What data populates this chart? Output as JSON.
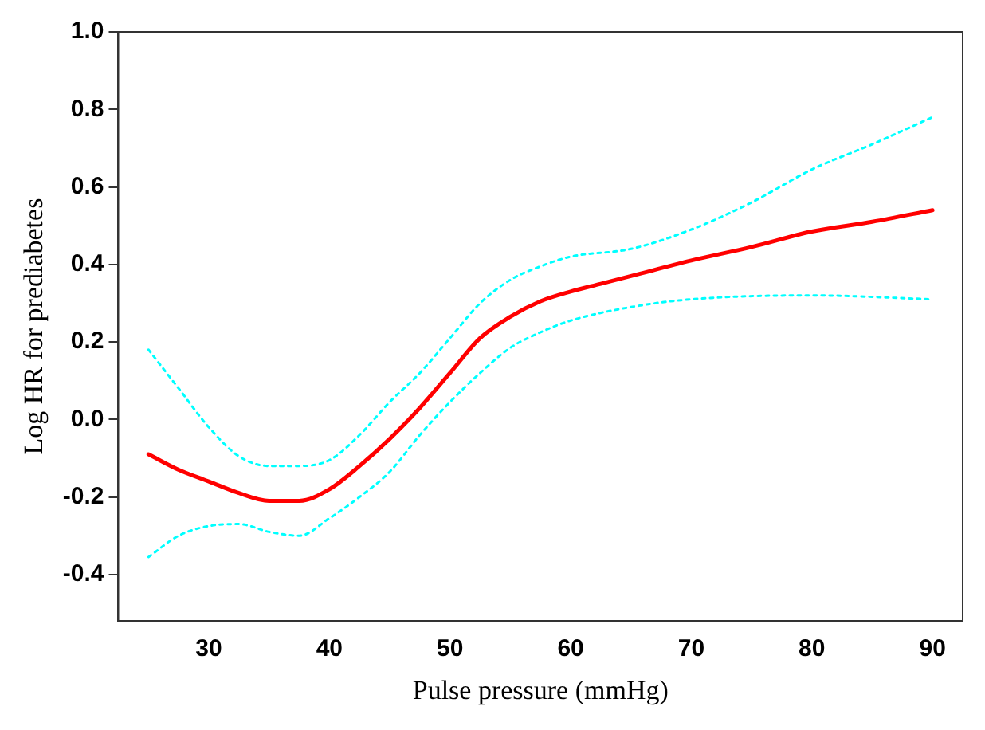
{
  "chart_data": {
    "type": "line",
    "xlabel": "Pulse pressure (mmHg)",
    "ylabel": "Log HR for prediabetes",
    "xlim": [
      22.5,
      92.5
    ],
    "xticks": [
      30,
      40,
      50,
      60,
      70,
      80,
      90
    ],
    "ylim": [
      -0.52,
      1.0
    ],
    "yticks": [
      -0.4,
      -0.2,
      {
        "value": 0,
        "label": "0.0"
      },
      0.2,
      0.4,
      0.6,
      0.8,
      {
        "value": 1,
        "label": "1.0"
      }
    ],
    "grid": false,
    "legend": false,
    "marker": "none",
    "series": [
      {
        "color": "#00ffff",
        "line_style": "dotted",
        "x": [
          25,
          27.5,
          30,
          32.5,
          35,
          37.5,
          40,
          42.5,
          45,
          47.5,
          50,
          52.5,
          55,
          57.5,
          60,
          65,
          70,
          75,
          80,
          85,
          90
        ],
        "values": [
          0.18,
          0.08,
          -0.02,
          -0.095,
          -0.12,
          -0.12,
          -0.105,
          -0.04,
          0.045,
          0.12,
          0.21,
          0.3,
          0.36,
          0.395,
          0.42,
          0.44,
          0.49,
          0.56,
          0.645,
          0.71,
          0.78
        ]
      },
      {
        "color": "#00ffff",
        "line_style": "dotted",
        "x": [
          25,
          27.5,
          30,
          32.5,
          35,
          37.5,
          40,
          42.5,
          45,
          47.5,
          50,
          52.5,
          55,
          57.5,
          60,
          65,
          70,
          80,
          90
        ],
        "values": [
          -0.355,
          -0.3,
          -0.275,
          -0.27,
          -0.29,
          -0.3,
          -0.255,
          -0.2,
          -0.135,
          -0.04,
          0.045,
          0.12,
          0.185,
          0.225,
          0.255,
          0.29,
          0.31,
          0.32,
          0.31
        ]
      },
      {
        "color": "#ff0000",
        "line_style": "solid",
        "x": [
          25,
          27.5,
          30,
          32.5,
          35,
          37.5,
          40,
          42.5,
          45,
          47.5,
          50,
          52.5,
          55,
          57.5,
          60,
          62.5,
          65,
          70,
          75,
          80,
          85,
          90
        ],
        "values": [
          -0.09,
          -0.13,
          -0.16,
          -0.19,
          -0.21,
          -0.21,
          -0.18,
          -0.12,
          -0.05,
          0.03,
          0.12,
          0.21,
          0.265,
          0.305,
          0.33,
          0.35,
          0.37,
          0.41,
          0.445,
          0.485,
          0.51,
          0.54
        ]
      }
    ]
  }
}
